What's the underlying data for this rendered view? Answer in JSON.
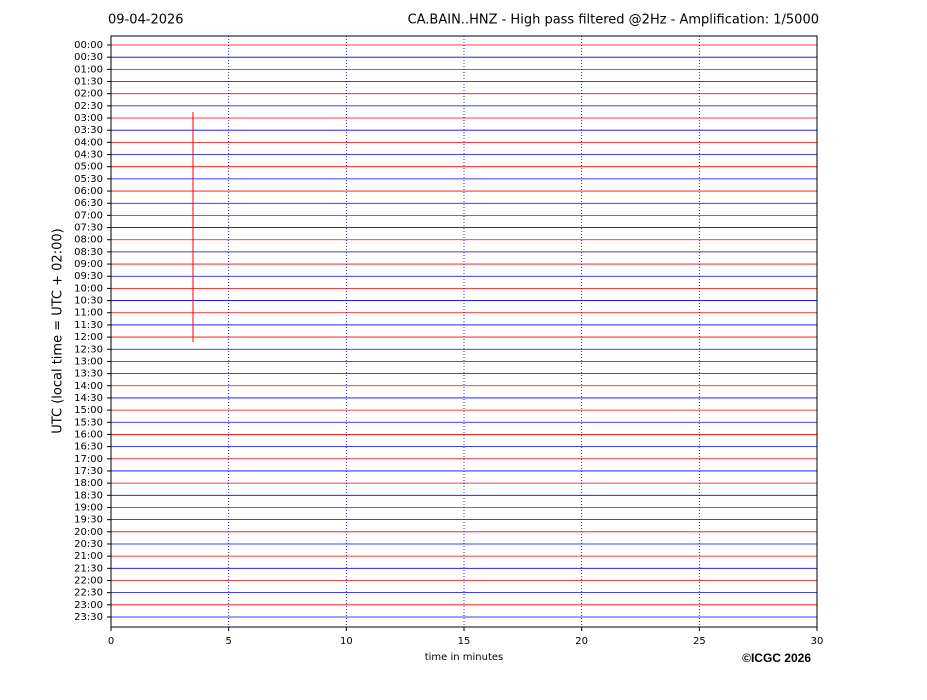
{
  "chart_data": {
    "type": "helicorder",
    "date": "09-04-2026",
    "title": "CA.BAIN..HNZ - High pass filtered @2Hz - Amplification: 1/5000",
    "x_label": "time in minutes",
    "y_label": "UTC (local time = UTC + 02:00)",
    "copyright": "©ICGC 2026",
    "categories": [
      "00:00",
      "00:30",
      "01:00",
      "01:30",
      "02:00",
      "02:30",
      "03:00",
      "03:30",
      "04:00",
      "04:30",
      "05:00",
      "05:30",
      "06:00",
      "06:30",
      "07:00",
      "07:30",
      "08:00",
      "08:30",
      "09:00",
      "09:30",
      "10:00",
      "10:30",
      "11:00",
      "11:30",
      "12:00",
      "12:30",
      "13:00",
      "13:30",
      "14:00",
      "14:30",
      "15:00",
      "15:30",
      "16:00",
      "16:30",
      "17:00",
      "17:30",
      "18:00",
      "18:30",
      "19:00",
      "19:30",
      "20:00",
      "20:30",
      "21:00",
      "21:30",
      "22:00",
      "22:30",
      "23:00",
      "23:30"
    ],
    "trace_colors": [
      "#ff0000",
      "#0000ff"
    ],
    "xlim": [
      0,
      30
    ],
    "xticks": [
      0,
      5,
      10,
      15,
      20,
      25,
      30
    ],
    "grid": true
  }
}
